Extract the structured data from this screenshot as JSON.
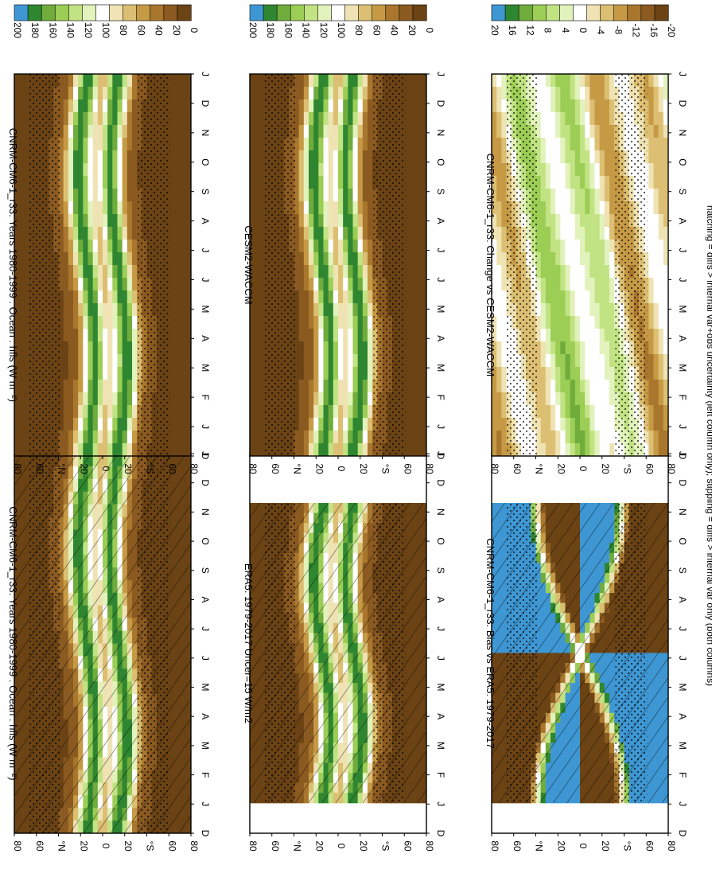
{
  "footer_note": "hatching = diffs > internal var+obs uncertainty (left column only); stippling = diffs > internal var only (both columns)",
  "panels": [
    {
      "id": "r0c0",
      "title": "CNRM-CM6-1_r33: Years 1980-1999 : Ocean : hfls (W m⁻²)",
      "kind": "abs",
      "months": "full",
      "hatch": true,
      "stipple": true
    },
    {
      "id": "r0c1",
      "title": "CNRM-CM6-1_r33: Years 1980-1999 : Ocean : hfls (W m⁻²)",
      "kind": "abs",
      "months": "full",
      "hatch": false,
      "stipple": true
    },
    {
      "id": "r1c0",
      "title": "ERA5: 1979-2017 Uncer=15 W/m2",
      "kind": "abs",
      "months": "partial",
      "hatch": true,
      "stipple": true
    },
    {
      "id": "r1c1",
      "title": "CESM2-WACCM",
      "kind": "abs",
      "months": "full",
      "hatch": false,
      "stipple": true
    },
    {
      "id": "r2c0",
      "title": "CNRM-CM6-1_r33: Bias vs ERA5: 1979-2017",
      "kind": "bias",
      "months": "partial",
      "hatch": true,
      "stipple": true
    },
    {
      "id": "r2c1",
      "title": "CNRM-CM6-1_r33: Change vs CESM2-WACCM",
      "kind": "change",
      "months": "full",
      "hatch": false,
      "stipple": true
    }
  ],
  "axis": {
    "month_ticks": [
      "D",
      "J",
      "F",
      "M",
      "A",
      "M",
      "J",
      "J",
      "A",
      "S",
      "O",
      "N",
      "D",
      "J"
    ],
    "lat_ticks": [
      "80",
      "60",
      "°N",
      "20",
      "0",
      "20",
      "°S",
      "60",
      "80"
    ]
  },
  "colorbars": [
    {
      "id": "cb-abs",
      "labels": [
        "200",
        "180",
        "160",
        "140",
        "120",
        "100",
        "80",
        "60",
        "40",
        "20",
        "0"
      ]
    },
    {
      "id": "cb-diff",
      "labels": [
        "20",
        "16",
        "12",
        "8",
        "4",
        "0",
        "-4",
        "-8",
        "-12",
        "-16",
        "-20"
      ]
    }
  ],
  "chart_data": {
    "type": "heatmap",
    "xlabel": "",
    "ylabel": "",
    "x": [
      "D",
      "J",
      "F",
      "M",
      "A",
      "M",
      "J",
      "J",
      "A",
      "S",
      "O",
      "N",
      "D",
      "J"
    ],
    "y": [
      -80,
      -60,
      -40,
      -20,
      0,
      20,
      40,
      60,
      80
    ],
    "colormap_abs": [
      "#6b4314",
      "#8a5a20",
      "#a9762e",
      "#c69a45",
      "#dcbf72",
      "#efe3b4",
      "#ffffff",
      "#e2f2bc",
      "#c2e383",
      "#9ccd55",
      "#6fac3c",
      "#2f8631",
      "#3e97d3"
    ],
    "colormap_diff": [
      "#6b4314",
      "#8a5a20",
      "#a9762e",
      "#c69a45",
      "#dcbf72",
      "#efe3b4",
      "#ffffff",
      "#e2f2bc",
      "#c2e383",
      "#9ccd55",
      "#6fac3c",
      "#2f8631",
      "#3e97d3"
    ],
    "colorbar_abs": [
      200,
      180,
      160,
      140,
      120,
      100,
      80,
      60,
      40,
      20,
      0
    ],
    "colorbar_diff": [
      20,
      16,
      12,
      8,
      4,
      0,
      -4,
      -8,
      -12,
      -16,
      -20
    ]
  }
}
